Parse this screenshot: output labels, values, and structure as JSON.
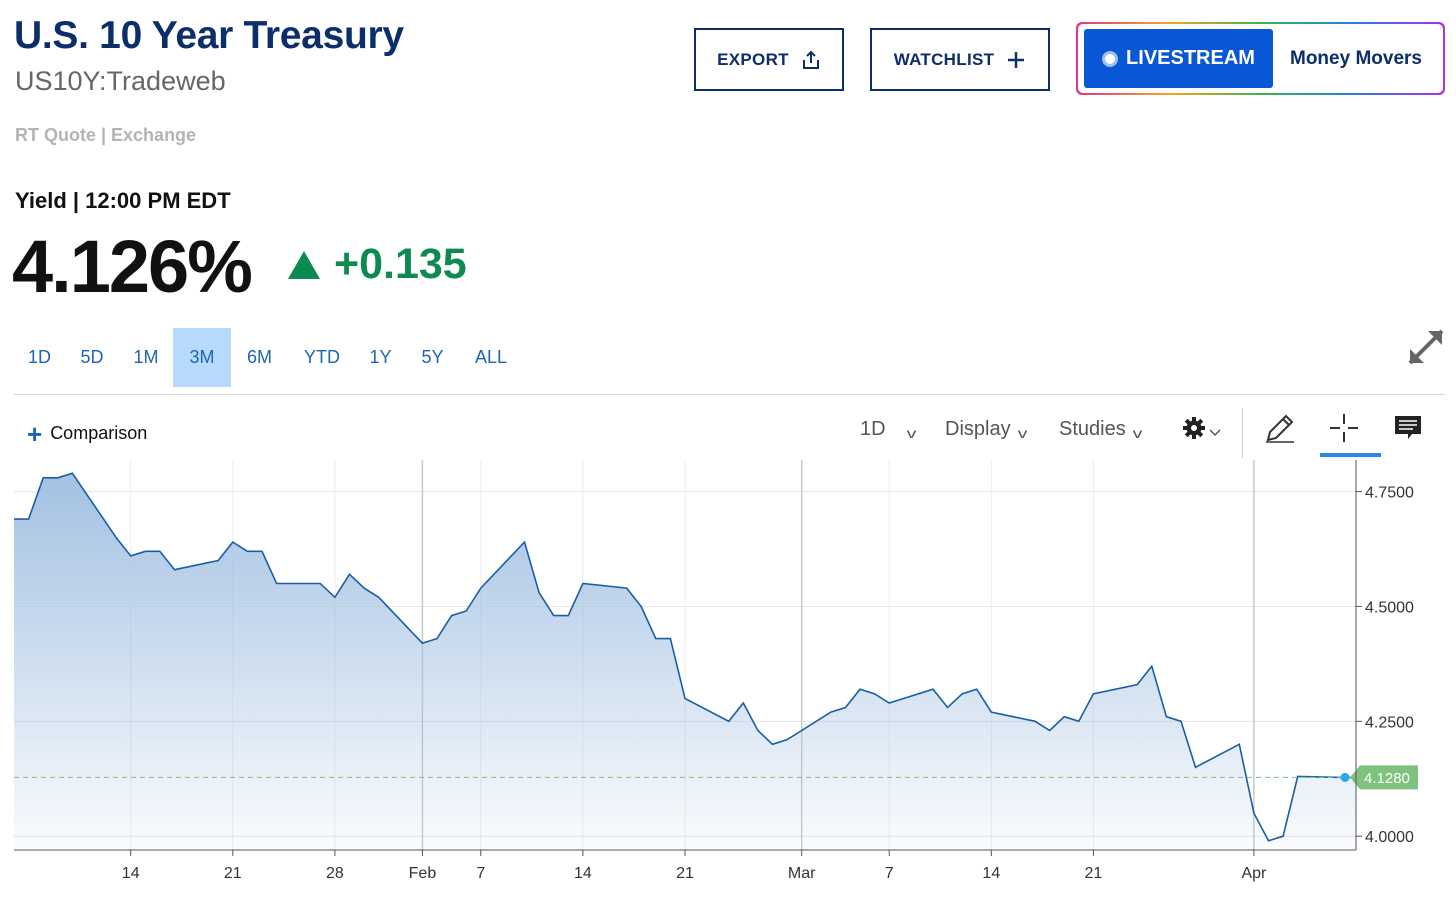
{
  "header": {
    "title": "U.S. 10 Year Treasury",
    "symbol": "US10Y:Tradeweb",
    "quote_source": "RT Quote | Exchange"
  },
  "actions": {
    "export_label": "EXPORT",
    "watchlist_label": "WATCHLIST",
    "livestream_label": "LIVESTREAM",
    "money_movers_label": "Money Movers"
  },
  "quote": {
    "yield_label": "Yield | 12:00 PM EDT",
    "price": "4.126%",
    "change": "+0.135",
    "direction": "up",
    "up_color": "#0d8a4f"
  },
  "ranges": {
    "items": [
      "1D",
      "5D",
      "1M",
      "3M",
      "6M",
      "YTD",
      "1Y",
      "5Y",
      "ALL"
    ],
    "selected": "3M"
  },
  "toolbar": {
    "comparison_label": "Comparison",
    "interval_label": "1D",
    "display_label": "Display",
    "studies_label": "Studies",
    "icons": [
      "gear-icon",
      "pencil-icon",
      "crosshair-icon",
      "comment-icon"
    ],
    "active_tool": "crosshair-icon"
  },
  "chart_data": {
    "type": "area",
    "title": "",
    "xlabel": "",
    "ylabel": "",
    "ylim": [
      3.97,
      4.81
    ],
    "y_ticks": [
      4.0,
      4.25,
      4.5,
      4.75
    ],
    "y_tick_labels": [
      "4.0000",
      "4.2500",
      "4.5000",
      "4.7500"
    ],
    "x_range": [
      "2025-01-06",
      "2025-04-08"
    ],
    "x_ticks": [
      {
        "date": "2025-01-14",
        "label": "14"
      },
      {
        "date": "2025-01-21",
        "label": "21"
      },
      {
        "date": "2025-01-28",
        "label": "28"
      },
      {
        "date": "2025-02-03",
        "label": "Feb"
      },
      {
        "date": "2025-02-07",
        "label": "7"
      },
      {
        "date": "2025-02-14",
        "label": "14"
      },
      {
        "date": "2025-02-21",
        "label": "21"
      },
      {
        "date": "2025-03-01",
        "label": "Mar"
      },
      {
        "date": "2025-03-07",
        "label": "7"
      },
      {
        "date": "2025-03-14",
        "label": "14"
      },
      {
        "date": "2025-03-21",
        "label": "21"
      },
      {
        "date": "2025-04-01",
        "label": "Apr"
      }
    ],
    "major_gridlines": [
      "2025-02-03",
      "2025-03-01",
      "2025-04-01"
    ],
    "last_value": 4.128,
    "last_value_label": "4.1280",
    "line_color": "#1a5fa3",
    "fill_color": "#a3c1e2",
    "last_label_color": "#7ec27e",
    "series": [
      {
        "x": [
          "2025-01-06",
          "2025-01-07",
          "2025-01-08",
          "2025-01-09",
          "2025-01-10",
          "2025-01-13",
          "2025-01-14",
          "2025-01-15",
          "2025-01-16",
          "2025-01-17",
          "2025-01-20",
          "2025-01-21",
          "2025-01-22",
          "2025-01-23",
          "2025-01-24",
          "2025-01-27",
          "2025-01-28",
          "2025-01-29",
          "2025-01-30",
          "2025-01-31",
          "2025-02-03",
          "2025-02-04",
          "2025-02-05",
          "2025-02-06",
          "2025-02-07",
          "2025-02-10",
          "2025-02-11",
          "2025-02-12",
          "2025-02-13",
          "2025-02-14",
          "2025-02-17",
          "2025-02-18",
          "2025-02-19",
          "2025-02-20",
          "2025-02-21",
          "2025-02-24",
          "2025-02-25",
          "2025-02-26",
          "2025-02-27",
          "2025-02-28",
          "2025-03-03",
          "2025-03-04",
          "2025-03-05",
          "2025-03-06",
          "2025-03-07",
          "2025-03-10",
          "2025-03-11",
          "2025-03-12",
          "2025-03-13",
          "2025-03-14",
          "2025-03-17",
          "2025-03-18",
          "2025-03-19",
          "2025-03-20",
          "2025-03-21",
          "2025-03-24",
          "2025-03-25",
          "2025-03-26",
          "2025-03-27",
          "2025-03-28",
          "2025-03-31",
          "2025-04-01",
          "2025-04-02",
          "2025-04-03",
          "2025-04-04",
          "2025-04-07",
          "2025-04-08"
        ],
        "values": [
          4.69,
          4.69,
          4.78,
          4.78,
          4.79,
          4.65,
          4.61,
          4.62,
          4.62,
          4.58,
          4.6,
          4.64,
          4.62,
          4.62,
          4.55,
          4.55,
          4.52,
          4.57,
          4.54,
          4.52,
          4.42,
          4.43,
          4.48,
          4.49,
          4.54,
          4.64,
          4.53,
          4.48,
          4.48,
          4.55,
          4.54,
          4.5,
          4.43,
          4.43,
          4.3,
          4.25,
          4.29,
          4.23,
          4.2,
          4.21,
          4.27,
          4.28,
          4.32,
          4.31,
          4.29,
          4.32,
          4.28,
          4.31,
          4.32,
          4.27,
          4.25,
          4.23,
          4.26,
          4.25,
          4.31,
          4.33,
          4.37,
          4.26,
          4.25,
          4.15,
          4.2,
          4.05,
          3.99,
          4.0,
          4.13,
          4.128,
          4.128
        ]
      }
    ]
  }
}
